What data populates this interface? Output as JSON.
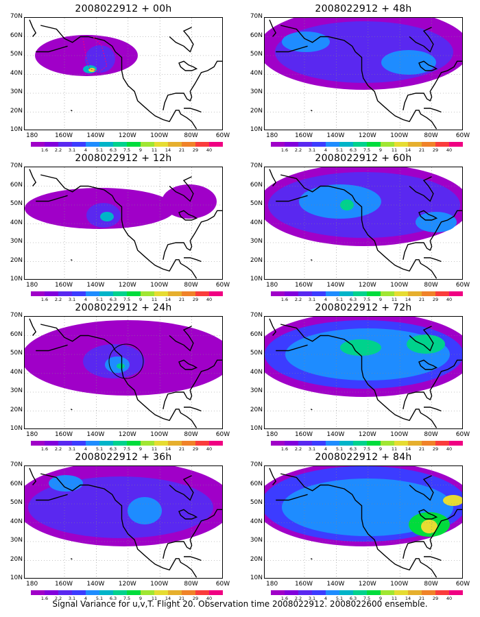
{
  "panels": [
    {
      "id": "p00",
      "title": "2008022912 + 00h"
    },
    {
      "id": "p48",
      "title": "2008022912 + 48h"
    },
    {
      "id": "p12",
      "title": "2008022912 + 12h"
    },
    {
      "id": "p60",
      "title": "2008022912 + 60h"
    },
    {
      "id": "p24",
      "title": "2008022912 + 24h"
    },
    {
      "id": "p72",
      "title": "2008022912 + 72h"
    },
    {
      "id": "p36",
      "title": "2008022912 + 36h"
    },
    {
      "id": "p84",
      "title": "2008022912 + 84h"
    }
  ],
  "lat_labels": [
    "70N",
    "60N",
    "50N",
    "40N",
    "30N",
    "20N",
    "10N"
  ],
  "lon_labels": [
    "180",
    "160W",
    "140W",
    "120W",
    "100W",
    "80W",
    "60W"
  ],
  "colorbar": {
    "labels": [
      "1.6",
      "2.2",
      "3.1",
      "4",
      "5.1",
      "6.3",
      "7.5",
      "9",
      "11",
      "14",
      "21",
      "29",
      "40"
    ],
    "colors": [
      "#a000c8",
      "#8200dc",
      "#5a28f0",
      "#3c3cff",
      "#1e8cff",
      "#00b4c8",
      "#00d28c",
      "#00dc3c",
      "#a0e632",
      "#e6dc32",
      "#e6af2d",
      "#f08228",
      "#fa3c3c",
      "#f00082"
    ]
  },
  "footer": "Signal Variance for u,v,T. Flight 20. Observation time 2008022912. 2008022600 ensemble."
}
